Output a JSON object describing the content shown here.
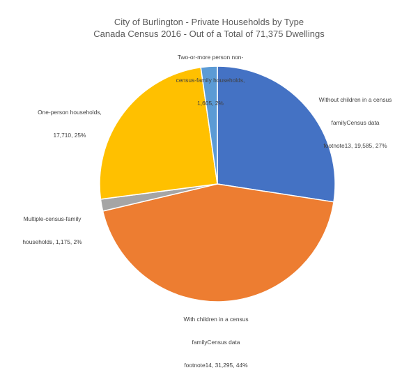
{
  "chart_data": {
    "type": "pie",
    "title": "City of Burlington - Private Households by Type",
    "subtitle": "Canada Census 2016 - Out of a Total of 71,375 Dwellings",
    "slices": [
      {
        "label_lines": [
          "Without children in a census",
          "familyCensus data",
          "footnote13, 19,585, 27%"
        ],
        "value": 19585,
        "percent": 27,
        "color": "#4472C4"
      },
      {
        "label_lines": [
          "With children in a census",
          "familyCensus data",
          "footnote14, 31,295, 44%"
        ],
        "value": 31295,
        "percent": 44,
        "color": "#ED7D31"
      },
      {
        "label_lines": [
          "Multiple-census-family",
          "households, 1,175, 2%"
        ],
        "value": 1175,
        "percent": 2,
        "color": "#A5A5A5"
      },
      {
        "label_lines": [
          "One-person households,",
          "17,710, 25%"
        ],
        "value": 17710,
        "percent": 25,
        "color": "#FFC000"
      },
      {
        "label_lines": [
          "Two-or-more person non-",
          "census-family households,",
          "1,605, 2%"
        ],
        "value": 1605,
        "percent": 2,
        "color": "#5B9BD5"
      }
    ]
  }
}
